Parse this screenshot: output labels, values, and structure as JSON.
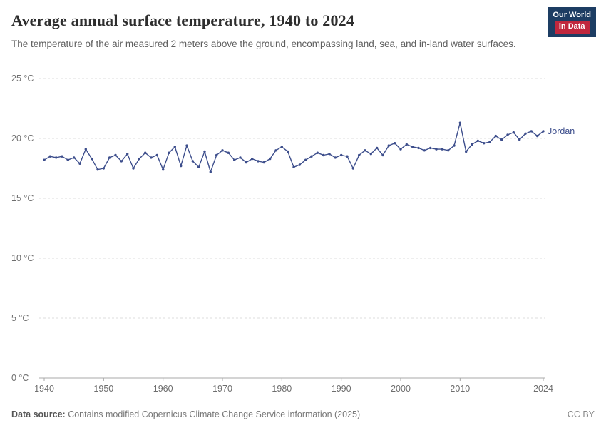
{
  "header": {
    "title": "Average annual surface temperature, 1940 to 2024",
    "subtitle": "The temperature of the air measured 2 meters above the ground, encompassing land, sea, and in-land water surfaces."
  },
  "branding": {
    "logo_line1": "Our World",
    "logo_line2": "in Data",
    "logo_bg_color": "#1d3d63",
    "logo_accent_color": "#c0273d"
  },
  "footer": {
    "datasource_label": "Data source:",
    "datasource_text": " Contains modified Copernicus Climate Change Service information (2025)",
    "license": "CC BY"
  },
  "chart_data": {
    "type": "line",
    "title": "Average annual surface temperature, 1940 to 2024",
    "xlabel": "",
    "ylabel": "",
    "ylim": [
      0,
      25
    ],
    "grid": true,
    "legend_position": "end-of-line",
    "yticks": [
      {
        "value": 0,
        "label": "0 °C"
      },
      {
        "value": 5,
        "label": "5 °C"
      },
      {
        "value": 10,
        "label": "10 °C"
      },
      {
        "value": 15,
        "label": "15 °C"
      },
      {
        "value": 20,
        "label": "20 °C"
      },
      {
        "value": 25,
        "label": "25 °C"
      }
    ],
    "xticks": [
      1940,
      1950,
      1960,
      1970,
      1980,
      1990,
      2000,
      2010,
      2024
    ],
    "x": [
      1940,
      1941,
      1942,
      1943,
      1944,
      1945,
      1946,
      1947,
      1948,
      1949,
      1950,
      1951,
      1952,
      1953,
      1954,
      1955,
      1956,
      1957,
      1958,
      1959,
      1960,
      1961,
      1962,
      1963,
      1964,
      1965,
      1966,
      1967,
      1968,
      1969,
      1970,
      1971,
      1972,
      1973,
      1974,
      1975,
      1976,
      1977,
      1978,
      1979,
      1980,
      1981,
      1982,
      1983,
      1984,
      1985,
      1986,
      1987,
      1988,
      1989,
      1990,
      1991,
      1992,
      1993,
      1994,
      1995,
      1996,
      1997,
      1998,
      1999,
      2000,
      2001,
      2002,
      2003,
      2004,
      2005,
      2006,
      2007,
      2008,
      2009,
      2010,
      2011,
      2012,
      2013,
      2014,
      2015,
      2016,
      2017,
      2018,
      2019,
      2020,
      2021,
      2022,
      2023,
      2024
    ],
    "series": [
      {
        "name": "Jordan",
        "color": "#3d4e8c",
        "values": [
          18.2,
          18.5,
          18.4,
          18.5,
          18.2,
          18.4,
          17.9,
          19.1,
          18.3,
          17.4,
          17.5,
          18.4,
          18.6,
          18.1,
          18.7,
          17.5,
          18.3,
          18.8,
          18.4,
          18.6,
          17.4,
          18.8,
          19.3,
          17.7,
          19.4,
          18.1,
          17.6,
          18.9,
          17.2,
          18.6,
          19.0,
          18.8,
          18.2,
          18.4,
          18.0,
          18.3,
          18.1,
          18.0,
          18.3,
          19.0,
          19.3,
          18.9,
          17.6,
          17.8,
          18.2,
          18.5,
          18.8,
          18.6,
          18.7,
          18.4,
          18.6,
          18.5,
          17.5,
          18.6,
          19.0,
          18.7,
          19.2,
          18.6,
          19.4,
          19.6,
          19.1,
          19.5,
          19.3,
          19.2,
          19.0,
          19.2,
          19.1,
          19.1,
          19.0,
          19.4,
          21.3,
          18.9,
          19.5,
          19.8,
          19.6,
          19.7,
          20.2,
          19.9,
          20.3,
          20.5,
          19.9,
          20.4,
          20.6,
          20.2,
          20.6
        ]
      }
    ]
  }
}
